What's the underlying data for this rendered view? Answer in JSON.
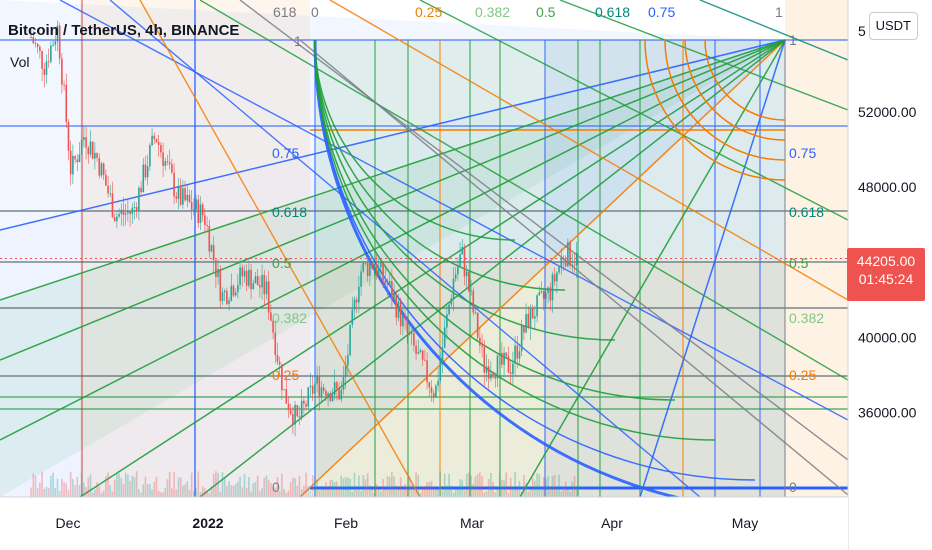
{
  "header": {
    "title": "Bitcoin / TetherUS, 4h, BINANCE",
    "indicator": "Vol",
    "currency_button": "USDT"
  },
  "last_price": {
    "value": "44205.00",
    "countdown": "01:45:24",
    "color": "#ef5350"
  },
  "colors": {
    "fan_blue": "#2962ff",
    "fan_green": "#1e9e3a",
    "fan_orange": "#f57c00",
    "fan_gray": "#787b86",
    "up_candle": "#26a69a",
    "down_candle": "#ef5350",
    "tl_0": "#2e7d32",
    "tl_0382": "#81c784",
    "tl_05": "#43a047",
    "tl_0618": "#00897b",
    "tl_075": "#2962ff",
    "tl_1": "#787b86"
  },
  "chart_data": {
    "type": "candlestick",
    "symbol": "Bitcoin / TetherUS",
    "interval": "4h",
    "exchange": "BINANCE",
    "y_axis": {
      "labels": [
        "52000.00",
        "48000.00",
        "40000.00",
        "36000.00"
      ],
      "values": [
        52000,
        48000,
        40000,
        36000
      ],
      "top_partial_label": "5",
      "range": [
        31500,
        56000
      ]
    },
    "x_axis": {
      "labels": [
        "Dec",
        "2022",
        "Feb",
        "Mar",
        "Apr",
        "May"
      ],
      "bold": [
        "2022"
      ]
    },
    "close_approx": [
      {
        "date": "2021-11-25",
        "price": 56000
      },
      {
        "date": "2021-11-28",
        "price": 54500
      },
      {
        "date": "2021-12-01",
        "price": 56500
      },
      {
        "date": "2021-12-04",
        "price": 48800
      },
      {
        "date": "2021-12-07",
        "price": 50800
      },
      {
        "date": "2021-12-10",
        "price": 49500
      },
      {
        "date": "2021-12-14",
        "price": 46500
      },
      {
        "date": "2021-12-18",
        "price": 46700
      },
      {
        "date": "2021-12-23",
        "price": 50800
      },
      {
        "date": "2021-12-28",
        "price": 47500
      },
      {
        "date": "2022-01-03",
        "price": 46500
      },
      {
        "date": "2022-01-07",
        "price": 42200
      },
      {
        "date": "2022-01-12",
        "price": 43400
      },
      {
        "date": "2022-01-17",
        "price": 42500
      },
      {
        "date": "2022-01-21",
        "price": 37000
      },
      {
        "date": "2022-01-24",
        "price": 35500
      },
      {
        "date": "2022-01-28",
        "price": 37500
      },
      {
        "date": "2022-02-03",
        "price": 37000
      },
      {
        "date": "2022-02-07",
        "price": 43500
      },
      {
        "date": "2022-02-10",
        "price": 44000
      },
      {
        "date": "2022-02-14",
        "price": 42500
      },
      {
        "date": "2022-02-18",
        "price": 40000
      },
      {
        "date": "2022-02-24",
        "price": 37000
      },
      {
        "date": "2022-02-28",
        "price": 43000
      },
      {
        "date": "2022-03-02",
        "price": 44500
      },
      {
        "date": "2022-03-07",
        "price": 38500
      },
      {
        "date": "2022-03-13",
        "price": 38500
      },
      {
        "date": "2022-03-17",
        "price": 41000
      },
      {
        "date": "2022-03-22",
        "price": 42500
      },
      {
        "date": "2022-03-25",
        "price": 44500
      },
      {
        "date": "2022-03-28",
        "price": 44205
      }
    ],
    "fib_levels_left": [
      "0.75",
      "0.618",
      "0.5",
      "0.382",
      "0.25",
      "0"
    ],
    "fib_levels_right": [
      "1",
      "0.75",
      "0.618",
      "0.5",
      "0.382",
      "0.25",
      "0"
    ],
    "fib_levels_top": [
      "618",
      "0",
      "0.25",
      "0.382",
      "0.5",
      "0.618",
      "0.75",
      "1"
    ],
    "fib_level_top_left_box": "1"
  }
}
